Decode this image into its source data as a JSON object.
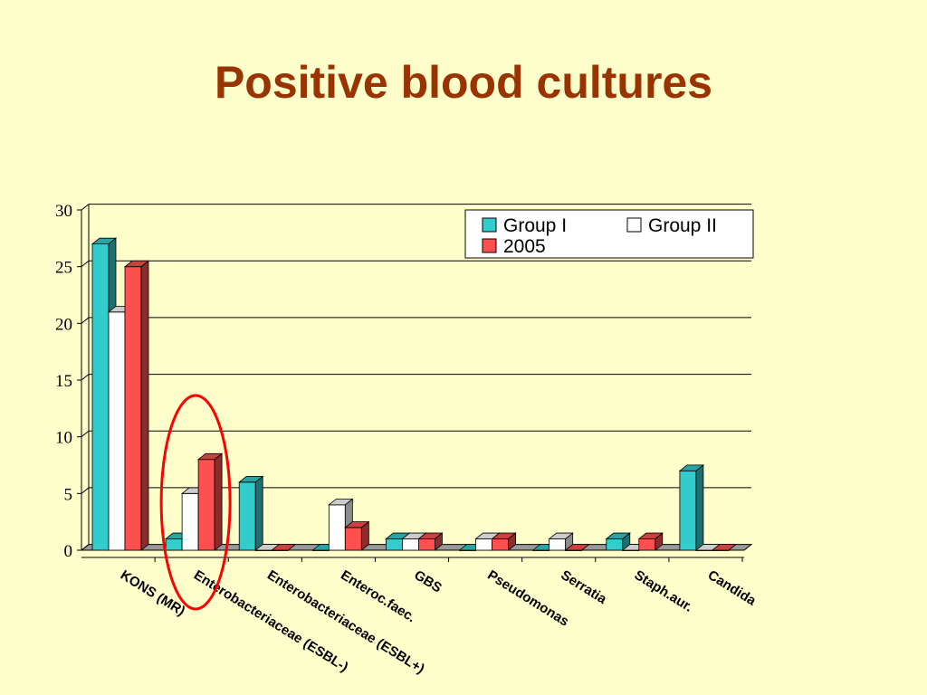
{
  "slide": {
    "title": "Positive blood cultures"
  },
  "chart_data": {
    "type": "bar",
    "title": "",
    "xlabel": "",
    "ylabel": "",
    "ylim": [
      0,
      30
    ],
    "yticks": [
      0,
      5,
      10,
      15,
      20,
      25,
      30
    ],
    "grid": true,
    "legend_position": "top-right",
    "categories": [
      "KONS (MR)",
      "Enterobacteriaceae (ESBL-)",
      "Enterobacteriaceae (ESBL+)",
      "Enteroc.faec.",
      "GBS",
      "Pseudomonas",
      "Serratia",
      "Staph.aur.",
      "Candida"
    ],
    "series": [
      {
        "name": "Group I",
        "color": "#33cccc",
        "values": [
          27,
          1,
          6,
          0,
          1,
          0,
          0,
          1,
          7
        ]
      },
      {
        "name": "Group II",
        "color": "#ffffff",
        "values": [
          21,
          5,
          0,
          4,
          1,
          1,
          1,
          0,
          0
        ]
      },
      {
        "name": "2005",
        "color": "#ff5050",
        "values": [
          25,
          8,
          0,
          2,
          1,
          1,
          0,
          1,
          0
        ]
      }
    ],
    "annotation": {
      "type": "ellipse",
      "target_category": "Enterobacteriaceae (ESBL-)",
      "color": "#ff0000"
    }
  }
}
